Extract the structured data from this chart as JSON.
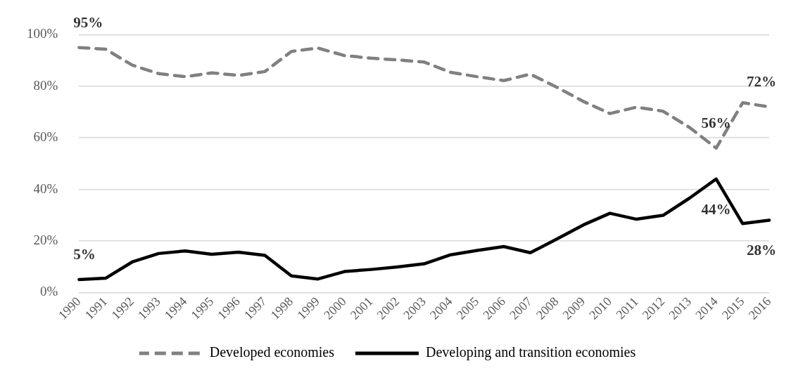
{
  "chart_data": {
    "type": "line",
    "categories": [
      "1990",
      "1991",
      "1992",
      "1993",
      "1994",
      "1995",
      "1996",
      "1997",
      "1998",
      "1999",
      "2000",
      "2001",
      "2002",
      "2003",
      "2004",
      "2005",
      "2006",
      "2007",
      "2008",
      "2009",
      "2010",
      "2011",
      "2012",
      "2013",
      "2014",
      "2015",
      "2016"
    ],
    "series": [
      {
        "name": "Developed economies",
        "color": "#808080",
        "line_style": "dashed",
        "values": [
          95,
          94.4,
          88.2,
          84.9,
          83.7,
          85.2,
          84.2,
          85.7,
          93.5,
          94.8,
          91.9,
          90.9,
          90.2,
          89.4,
          85.4,
          83.7,
          82.2,
          84.7,
          79.6,
          74.1,
          69.4,
          71.9,
          70.3,
          64.0,
          56,
          73.6,
          72
        ],
        "value_labels": [
          "95%",
          null,
          null,
          null,
          null,
          null,
          null,
          null,
          null,
          null,
          null,
          null,
          null,
          null,
          null,
          null,
          null,
          null,
          null,
          null,
          null,
          null,
          null,
          null,
          "56%",
          null,
          "72%"
        ]
      },
      {
        "name": "Developing and transition economies",
        "color": "#000000",
        "line_style": "solid",
        "values": [
          5,
          5.5,
          11.8,
          15.1,
          16.1,
          14.8,
          15.6,
          14.4,
          6.4,
          5.2,
          8.1,
          8.9,
          9.9,
          11.1,
          14.6,
          16.3,
          17.8,
          15.4,
          20.7,
          26.2,
          30.7,
          28.4,
          29.9,
          36.6,
          44,
          26.7,
          28
        ],
        "value_labels": [
          "5%",
          null,
          null,
          null,
          null,
          null,
          null,
          null,
          null,
          null,
          null,
          null,
          null,
          null,
          null,
          null,
          null,
          null,
          null,
          null,
          null,
          null,
          null,
          null,
          "44%",
          null,
          "28%"
        ]
      }
    ],
    "ylim": [
      0,
      100
    ],
    "yticks": [
      {
        "value": 0,
        "label": "0%"
      },
      {
        "value": 20,
        "label": "20%"
      },
      {
        "value": 40,
        "label": "40%"
      },
      {
        "value": 60,
        "label": "60%"
      },
      {
        "value": 80,
        "label": "80%"
      },
      {
        "value": 100,
        "label": "100%"
      }
    ],
    "grid": "y",
    "legend": "bottom",
    "marker": "none"
  }
}
